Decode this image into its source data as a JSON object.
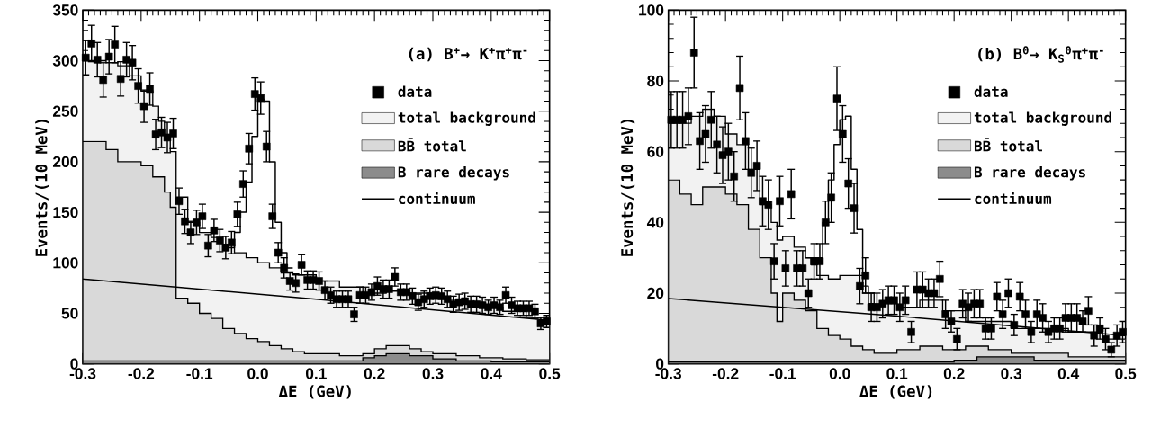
{
  "chart_data": [
    {
      "type": "area",
      "title": "(a)  B$^{+}$→ K$^{+}$π$^{+}$π$^{-}$",
      "xlabel": "ΔE  (GeV)",
      "ylabel": "Events/(10 MeV)",
      "xlim": [
        -0.3,
        0.5
      ],
      "ylim": [
        0,
        350
      ],
      "xticks": [
        -0.3,
        -0.2,
        -0.1,
        {
          "value": 0,
          "label": "0.0"
        },
        0.1,
        0.2,
        0.3,
        0.4,
        0.5
      ],
      "yticks": [
        0,
        50,
        100,
        150,
        200,
        250,
        300,
        350
      ],
      "legend": "top right",
      "series": [
        {
          "name": "total background",
          "color": "#f2f2f2",
          "x": [
            -0.3,
            -0.28,
            -0.26,
            -0.24,
            -0.22,
            -0.2,
            -0.18,
            -0.17,
            -0.16,
            -0.15,
            -0.14,
            -0.12,
            -0.1,
            -0.08,
            -0.06,
            -0.04,
            -0.02,
            0,
            0.02,
            0.04,
            0.06,
            0.1,
            0.14,
            0.18,
            0.22,
            0.26,
            0.3,
            0.34,
            0.38,
            0.42,
            0.46,
            0.5
          ],
          "values": [
            300,
            300,
            298,
            295,
            285,
            270,
            255,
            240,
            225,
            210,
            165,
            140,
            130,
            125,
            118,
            110,
            105,
            100,
            95,
            90,
            88,
            82,
            76,
            70,
            72,
            70,
            64,
            60,
            56,
            52,
            46,
            46
          ]
        },
        {
          "name": "BB̄ total",
          "color": "#d9d9d9",
          "x": [
            -0.3,
            -0.26,
            -0.24,
            -0.22,
            -0.2,
            -0.18,
            -0.16,
            -0.15,
            -0.14,
            -0.12,
            -0.1,
            -0.08,
            -0.06,
            -0.04,
            -0.02,
            0,
            0.02,
            0.04,
            0.06,
            0.08,
            0.14,
            0.18,
            0.2,
            0.22,
            0.26,
            0.28,
            0.3,
            0.34,
            0.38,
            0.42,
            0.46,
            0.5
          ],
          "values": [
            220,
            212,
            200,
            200,
            196,
            185,
            170,
            155,
            65,
            60,
            50,
            45,
            35,
            30,
            25,
            22,
            18,
            15,
            12,
            10,
            8,
            10,
            15,
            18,
            15,
            12,
            10,
            8,
            6,
            5,
            4,
            4
          ]
        },
        {
          "name": "B rare decays",
          "color": "#8c8c8c",
          "x": [
            -0.3,
            -0.1,
            0.16,
            0.18,
            0.2,
            0.22,
            0.26,
            0.3,
            0.34,
            0.4,
            0.5
          ],
          "values": [
            3,
            3,
            3,
            6,
            8,
            10,
            8,
            5,
            3,
            2,
            2
          ]
        },
        {
          "name": "continuum",
          "type": "line",
          "color": "#000000",
          "x": [
            -0.3,
            0.1,
            0.5
          ],
          "values": [
            84,
            64,
            43
          ]
        },
        {
          "type": "step",
          "color": "#000000",
          "x": [
            -0.06,
            -0.05,
            -0.04,
            -0.03,
            -0.02,
            -0.01,
            0,
            0.01,
            0.02,
            0.03,
            0.04,
            0.05,
            0.06
          ],
          "values": [
            118,
            115,
            130,
            150,
            180,
            225,
            262,
            260,
            200,
            140,
            110,
            95,
            95
          ]
        },
        {
          "name": "data",
          "type": "scatter",
          "marker": "square",
          "color": "#000000",
          "x": [
            -0.295,
            -0.285,
            -0.275,
            -0.265,
            -0.255,
            -0.245,
            -0.235,
            -0.225,
            -0.215,
            -0.205,
            -0.195,
            -0.185,
            -0.175,
            -0.165,
            -0.155,
            -0.145,
            -0.135,
            -0.125,
            -0.115,
            -0.105,
            -0.095,
            -0.085,
            -0.075,
            -0.065,
            -0.055,
            -0.045,
            -0.035,
            -0.025,
            -0.015,
            -0.005,
            0.005,
            0.015,
            0.025,
            0.035,
            0.045,
            0.055,
            0.065,
            0.075,
            0.085,
            0.095,
            0.105,
            0.115,
            0.125,
            0.135,
            0.145,
            0.155,
            0.165,
            0.175,
            0.185,
            0.195,
            0.205,
            0.215,
            0.225,
            0.235,
            0.245,
            0.255,
            0.265,
            0.275,
            0.285,
            0.295,
            0.305,
            0.315,
            0.325,
            0.335,
            0.345,
            0.355,
            0.365,
            0.375,
            0.385,
            0.395,
            0.405,
            0.415,
            0.425,
            0.435,
            0.445,
            0.455,
            0.465,
            0.475,
            0.485,
            0.495
          ],
          "values": [
            303,
            317,
            301,
            281,
            304,
            316,
            282,
            301,
            298,
            275,
            255,
            272,
            227,
            229,
            224,
            228,
            161,
            141,
            130,
            140,
            146,
            117,
            132,
            122,
            115,
            120,
            148,
            178,
            213,
            267,
            263,
            215,
            146,
            110,
            95,
            82,
            80,
            98,
            83,
            83,
            82,
            73,
            68,
            64,
            64,
            64,
            49,
            68,
            68,
            71,
            77,
            74,
            74,
            86,
            71,
            71,
            67,
            61,
            64,
            67,
            68,
            67,
            64,
            59,
            61,
            62,
            59,
            59,
            58,
            56,
            58,
            56,
            68,
            58,
            55,
            55,
            55,
            52,
            40,
            42
          ],
          "errors": [
            17,
            18,
            17,
            17,
            17,
            18,
            17,
            17,
            17,
            17,
            16,
            16,
            15,
            15,
            15,
            15,
            13,
            12,
            11,
            12,
            12,
            11,
            11,
            11,
            11,
            11,
            12,
            13,
            15,
            16,
            16,
            15,
            12,
            10,
            10,
            9,
            9,
            10,
            9,
            9,
            9,
            9,
            8,
            8,
            8,
            8,
            7,
            8,
            8,
            8,
            9,
            9,
            9,
            9,
            8,
            8,
            8,
            8,
            8,
            8,
            8,
            8,
            8,
            8,
            8,
            8,
            8,
            8,
            8,
            7,
            8,
            7,
            8,
            8,
            7,
            7,
            7,
            7,
            6,
            6
          ]
        }
      ]
    },
    {
      "type": "area",
      "title": "(b)  B$^{0}$→ K$_{S}$$^{0}$π$^{+}$π$^{-}$",
      "xlabel": "ΔE  (GeV)",
      "ylabel": "Events/(10 MeV)",
      "xlim": [
        -0.3,
        0.5
      ],
      "ylim": [
        0,
        100
      ],
      "xticks": [
        -0.3,
        -0.2,
        -0.1,
        {
          "value": 0,
          "label": "0.0"
        },
        0.1,
        0.2,
        0.3,
        0.4,
        0.5
      ],
      "yticks": [
        0,
        20,
        40,
        60,
        80,
        100
      ],
      "legend": "top right",
      "series": [
        {
          "name": "total background",
          "color": "#f2f2f2",
          "x": [
            -0.3,
            -0.26,
            -0.24,
            -0.22,
            -0.2,
            -0.18,
            -0.16,
            -0.14,
            -0.12,
            -0.11,
            -0.1,
            -0.08,
            -0.06,
            -0.04,
            -0.02,
            0,
            0.02,
            0.04,
            0.06,
            0.1,
            0.14,
            0.18,
            0.22,
            0.3,
            0.4,
            0.46,
            0.5
          ],
          "values": [
            68,
            70,
            72,
            70,
            65,
            62,
            55,
            45,
            40,
            35,
            36,
            33,
            30,
            25,
            24,
            25,
            25,
            20,
            17,
            16,
            18,
            15,
            12,
            10,
            9,
            7,
            7
          ]
        },
        {
          "name": "BB̄ total",
          "color": "#d9d9d9",
          "x": [
            -0.3,
            -0.28,
            -0.26,
            -0.24,
            -0.22,
            -0.2,
            -0.18,
            -0.16,
            -0.14,
            -0.12,
            -0.11,
            -0.1,
            -0.08,
            -0.06,
            -0.04,
            -0.02,
            0,
            0.02,
            0.04,
            0.06,
            0.1,
            0.14,
            0.18,
            0.22,
            0.26,
            0.3,
            0.4,
            0.5
          ],
          "values": [
            52,
            48,
            45,
            50,
            50,
            48,
            45,
            38,
            30,
            20,
            12,
            20,
            18,
            15,
            10,
            8,
            7,
            5,
            4,
            3,
            4,
            5,
            4,
            5,
            4,
            3,
            2,
            2
          ]
        },
        {
          "name": "B rare decays",
          "color": "#8c8c8c",
          "x": [
            -0.3,
            0.0,
            0.2,
            0.24,
            0.3,
            0.34,
            0.4,
            0.5
          ],
          "values": [
            0.5,
            0.5,
            1,
            2,
            2,
            1,
            1,
            1
          ]
        },
        {
          "name": "continuum",
          "type": "line",
          "color": "#000000",
          "x": [
            -0.3,
            0.1,
            0.5
          ],
          "values": [
            18.5,
            13.5,
            8
          ]
        },
        {
          "type": "step",
          "color": "#000000",
          "x": [
            -0.06,
            -0.05,
            -0.04,
            -0.03,
            -0.02,
            -0.01,
            0,
            0.01,
            0.02,
            0.03,
            0.04,
            0.05,
            0.06
          ],
          "values": [
            30,
            28,
            30,
            40,
            52,
            62,
            69,
            70,
            55,
            38,
            22,
            17,
            17
          ]
        },
        {
          "name": "data",
          "type": "scatter",
          "marker": "square",
          "color": "#000000",
          "x": [
            -0.295,
            -0.285,
            -0.275,
            -0.265,
            -0.255,
            -0.245,
            -0.235,
            -0.225,
            -0.215,
            -0.205,
            -0.195,
            -0.185,
            -0.175,
            -0.165,
            -0.155,
            -0.145,
            -0.135,
            -0.125,
            -0.115,
            -0.105,
            -0.095,
            -0.085,
            -0.075,
            -0.065,
            -0.055,
            -0.045,
            -0.035,
            -0.025,
            -0.015,
            -0.005,
            0.005,
            0.015,
            0.025,
            0.035,
            0.045,
            0.055,
            0.065,
            0.075,
            0.085,
            0.095,
            0.105,
            0.115,
            0.125,
            0.135,
            0.145,
            0.155,
            0.165,
            0.175,
            0.185,
            0.195,
            0.205,
            0.215,
            0.225,
            0.235,
            0.245,
            0.255,
            0.265,
            0.275,
            0.285,
            0.295,
            0.305,
            0.315,
            0.325,
            0.335,
            0.345,
            0.355,
            0.365,
            0.375,
            0.385,
            0.395,
            0.405,
            0.415,
            0.425,
            0.435,
            0.445,
            0.455,
            0.465,
            0.475,
            0.485,
            0.495
          ],
          "values": [
            69,
            69,
            69,
            70,
            88,
            63,
            65,
            69,
            62,
            59,
            60,
            53,
            78,
            63,
            54,
            56,
            46,
            45,
            29,
            46,
            27,
            48,
            27,
            27,
            20,
            29,
            29,
            40,
            47,
            75,
            65,
            51,
            44,
            22,
            25,
            16,
            16,
            17,
            18,
            18,
            16,
            18,
            9,
            21,
            21,
            20,
            20,
            24,
            14,
            12,
            7,
            17,
            16,
            17,
            17,
            10,
            10,
            19,
            14,
            20,
            11,
            19,
            14,
            9,
            14,
            13,
            9,
            10,
            10,
            13,
            13,
            13,
            12,
            15,
            8,
            10,
            7,
            4,
            8,
            9
          ],
          "errors": [
            8,
            8,
            8,
            8,
            10,
            8,
            8,
            8,
            8,
            8,
            8,
            7,
            9,
            8,
            7,
            7,
            7,
            7,
            5,
            7,
            5,
            7,
            5,
            5,
            4,
            5,
            5,
            6,
            7,
            9,
            8,
            7,
            7,
            5,
            5,
            4,
            4,
            4,
            4,
            4,
            4,
            4,
            3,
            5,
            5,
            4,
            4,
            5,
            4,
            3,
            3,
            4,
            4,
            4,
            4,
            3,
            3,
            4,
            4,
            4,
            3,
            4,
            4,
            3,
            4,
            4,
            3,
            3,
            3,
            4,
            4,
            4,
            3,
            4,
            3,
            3,
            3,
            2,
            3,
            3
          ]
        }
      ]
    }
  ]
}
